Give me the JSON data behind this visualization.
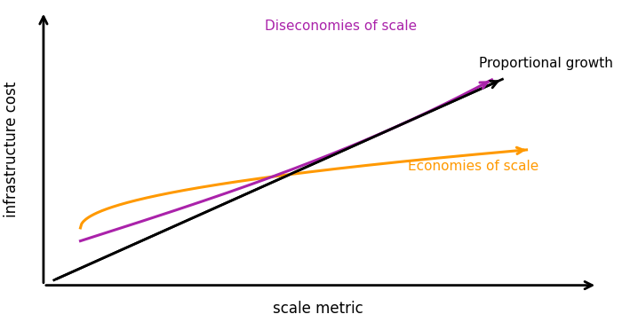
{
  "xlabel": "scale metric",
  "ylabel": "infrastructure cost",
  "proportional_label": "Proportional growth",
  "diseconomies_label": "Diseconomies of scale",
  "economies_label": "Economies of scale",
  "proportional_color": "#000000",
  "diseconomies_color": "#aa22aa",
  "economies_color": "#ff9900",
  "background_color": "#ffffff",
  "label_fontsize": 11,
  "axis_label_fontsize": 12
}
